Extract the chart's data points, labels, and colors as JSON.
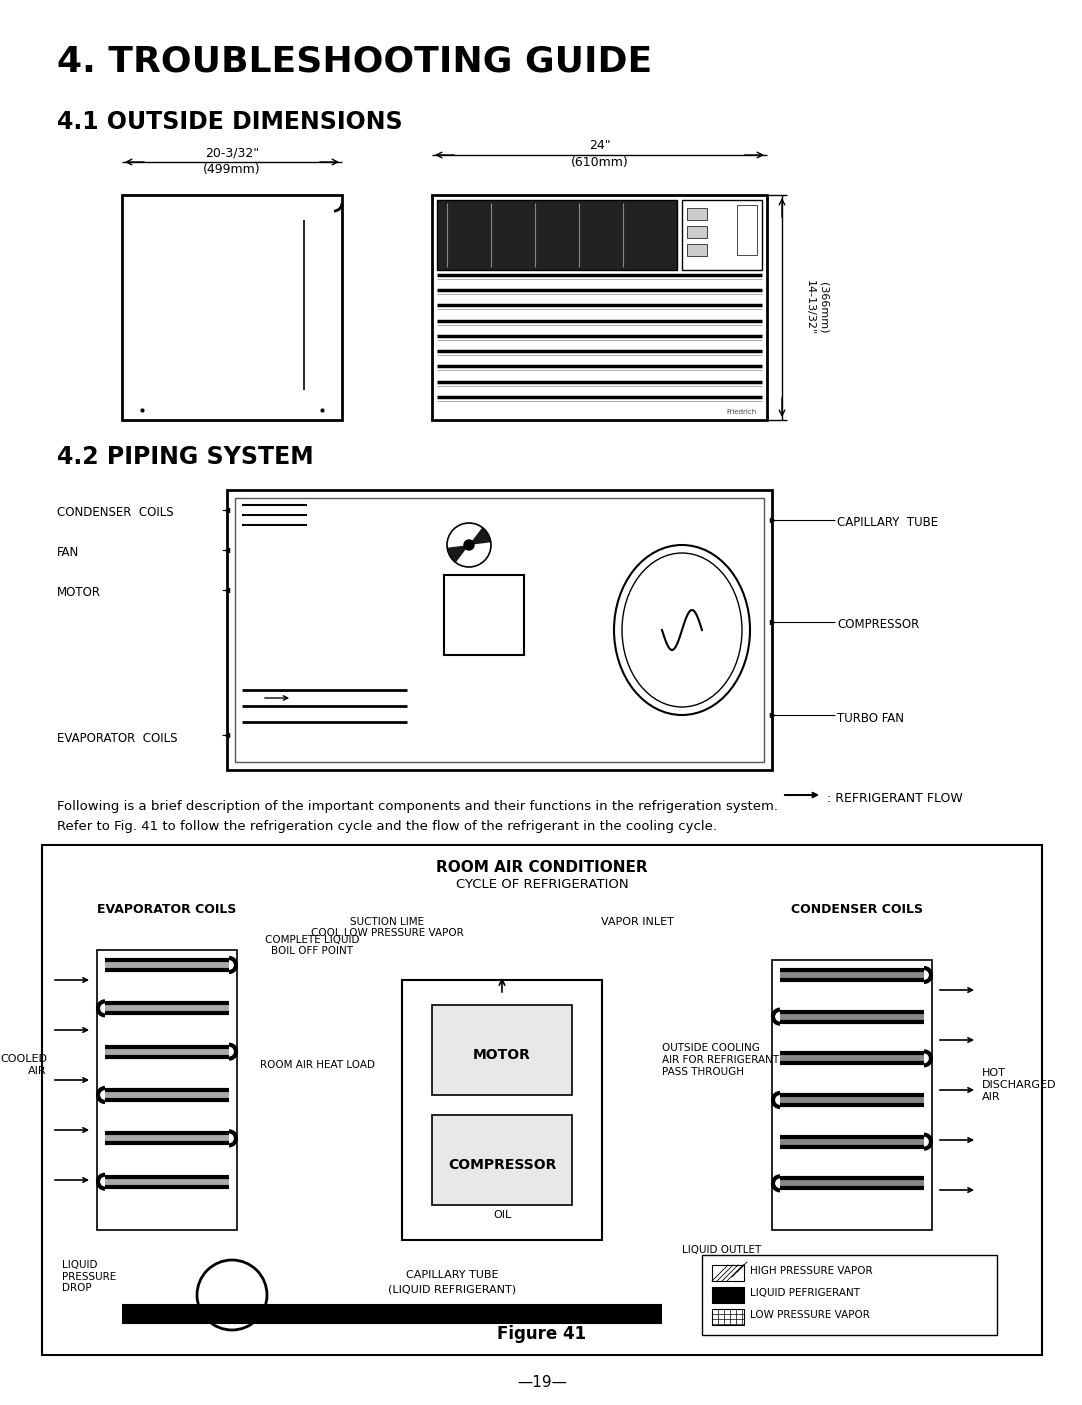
{
  "title": "4. TROUBLESHOOTING GUIDE",
  "subtitle": "4.1 OUTSIDE DIMENSIONS",
  "section2": "4.2 PIPING SYSTEM",
  "dim1_top": "20-3/32\"",
  "dim1_bot": "(499mm)",
  "dim2_top": "24\"",
  "dim2_bot": "(610mm)",
  "dim3_rot": "14-13/32\"\n(366mm)",
  "left_labels": [
    "CONDENSER  COILS",
    "FAN",
    "MOTOR",
    "EVAPORATOR  COILS"
  ],
  "right_labels": [
    "CAPILLARY  TUBE",
    "COMPRESSOR",
    "TURBO FAN"
  ],
  "refrig_flow": ": REFRIGERANT FLOW",
  "desc_line1": "Following is a brief description of the important components and their functions in the refrigeration system.",
  "desc_line2": "Refer to Fig. 41 to follow the refrigeration cycle and the flow of the refrigerant in the cooling cycle.",
  "fig_title": "ROOM AIR CONDITIONER",
  "fig_subtitle": "CYCLE OF REFRIGERATION",
  "fig_caption": "Figure 41",
  "fig_page": "—19—",
  "evap_label": "EVAPORATOR COILS",
  "cond_label": "CONDENSER COILS",
  "motor_label": "MOTOR",
  "comp_label": "COMPRESSOR",
  "oil_label": "OIL",
  "liq_ref_label": "(LIQUID REFRIGERANT)",
  "cap_tube_label": "CAPILLARY TUBE",
  "vapor_inlet": "VAPOR INLET",
  "suction_line1": "SUCTION LIME",
  "suction_line2": "COOL LOW PRESSURE VAPOR",
  "complete_liquid1": "COMPLETE LIQUID",
  "complete_liquid2": "BOIL OFF POINT",
  "room_air": "ROOM AIR HEAT LOAD",
  "cooled_air": "COOLED\nAIR",
  "hot_discharged": "HOT\nDISCHARGED\nAIR",
  "outside_cooling": "OUTSIDE COOLING\nAIR FOR REFRIGERANT\nPASS THROUGH",
  "liquid_outlet": "LIQUID OUTLET",
  "liquid_pressure": "LIQUID\nPRESSURE\nDROP",
  "legend_hp": "HIGH PRESSURE VAPOR",
  "legend_liq": "LIQUID PEFRIGERANT",
  "legend_lp": "LOW PRESSURE VAPOR",
  "bg_color": "#ffffff",
  "line_color": "#000000"
}
